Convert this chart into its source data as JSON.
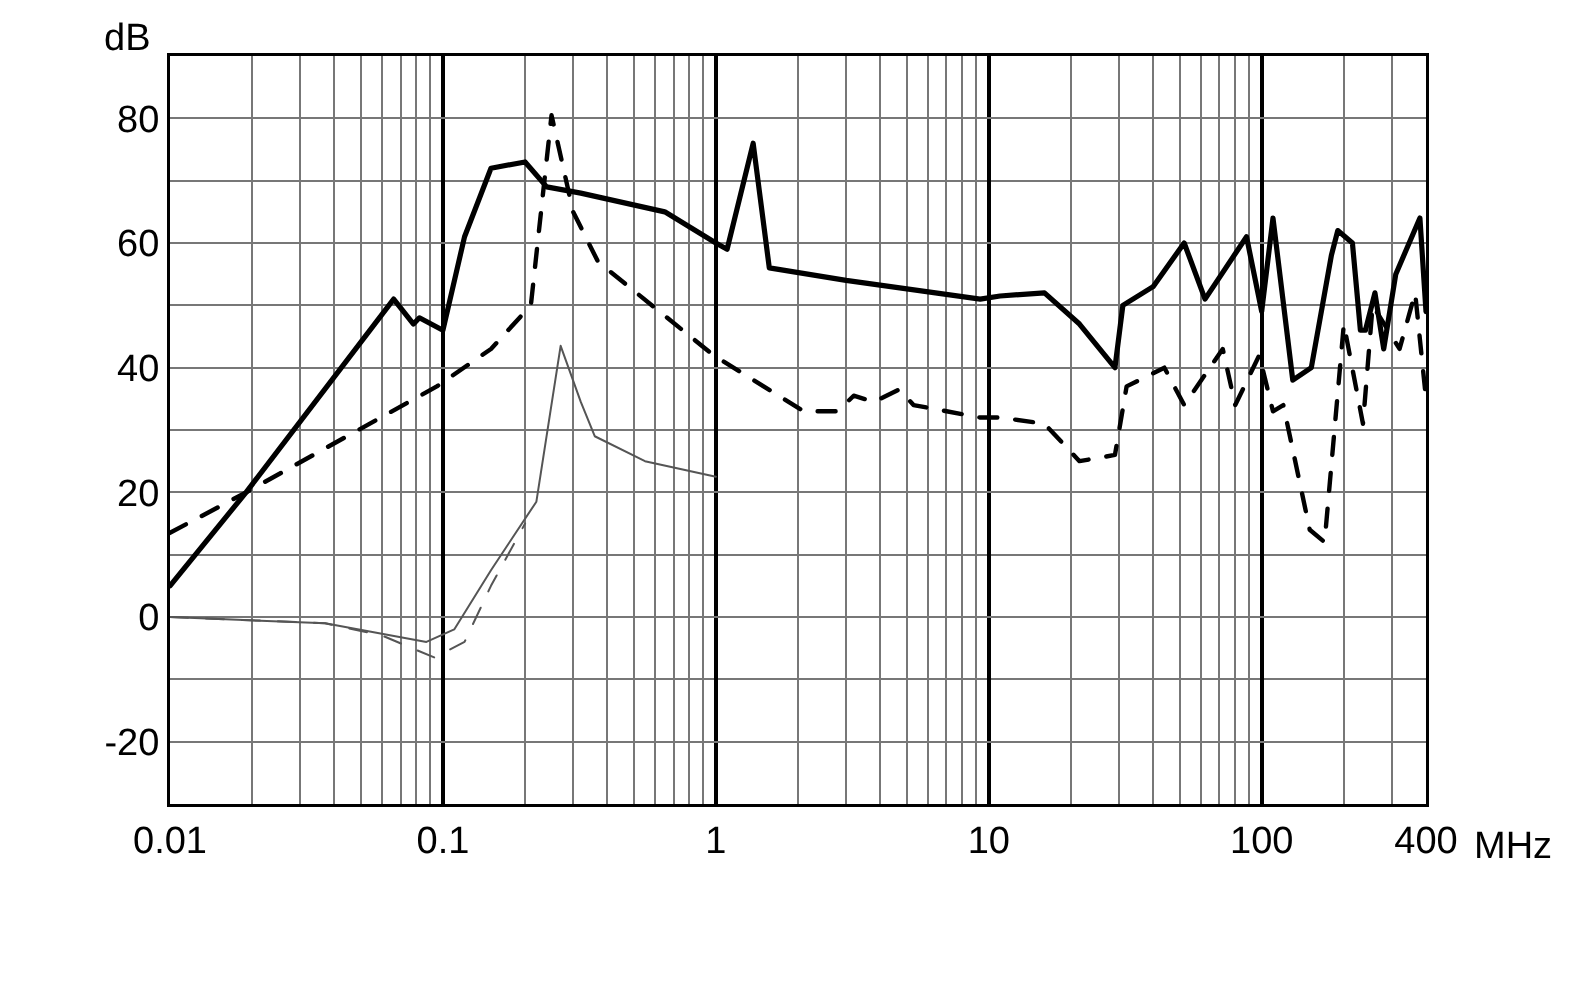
{
  "chart_data": {
    "type": "line",
    "xlabel": "MHz",
    "ylabel": "dB",
    "log": "x",
    "grid": true,
    "xlim": [
      0.01,
      400
    ],
    "xticks": [
      0.01,
      0.1,
      1,
      10,
      100,
      400
    ],
    "ylim": [
      -30,
      90
    ],
    "yticks": [
      -20,
      0,
      20,
      40,
      60,
      80
    ],
    "series": [
      {
        "color": "#000000",
        "line_style": "solid",
        "x": [
          0.01,
          0.019,
          0.066,
          0.078,
          0.082,
          0.1,
          0.12,
          0.15,
          0.2,
          0.24,
          0.32,
          0.65,
          1.0,
          1.1,
          1.37,
          1.57,
          3,
          9.3,
          11,
          16,
          21.5,
          29,
          31,
          40,
          52,
          62,
          88,
          100,
          110,
          130,
          152,
          180,
          190,
          215,
          230,
          240,
          260,
          280,
          310,
          380,
          400
        ],
        "values": [
          5,
          20,
          51,
          47,
          48,
          46,
          61,
          72,
          73,
          69,
          68,
          65,
          60,
          59,
          76,
          56,
          54,
          51,
          51.5,
          52,
          47,
          40,
          50,
          53,
          60,
          51,
          61,
          49,
          64,
          38,
          40,
          58,
          62,
          60,
          46,
          46,
          52,
          43,
          55,
          64,
          49
        ]
      },
      {
        "color": "#000000",
        "line_style": "dashed",
        "x": [
          0.01,
          0.019,
          0.095,
          0.15,
          0.21,
          0.25,
          0.3,
          0.37,
          0.98,
          2.1,
          2.8,
          3.2,
          3.8,
          4.7,
          5.3,
          9.3,
          11,
          16,
          21.5,
          29,
          32,
          44,
          52,
          72,
          80,
          98,
          110,
          120,
          150,
          170,
          200,
          235,
          255,
          320,
          365,
          400
        ],
        "values": [
          13.5,
          20,
          37,
          43,
          50,
          80.5,
          65,
          57,
          42,
          33,
          33,
          35.5,
          34.5,
          36.5,
          34,
          32,
          32,
          31,
          25,
          26,
          37,
          40,
          34,
          43,
          34,
          42,
          33,
          34,
          14,
          12,
          47,
          31,
          50,
          43,
          52,
          35
        ]
      },
      {
        "color": "#555555",
        "line_style": "solid",
        "x": [
          0.01,
          0.037,
          0.087,
          0.11,
          0.15,
          0.22,
          0.27,
          0.32,
          0.36,
          0.55,
          1.0
        ],
        "values": [
          0,
          -1,
          -4,
          -2,
          7.5,
          18.5,
          43.5,
          34.5,
          29,
          25,
          22.5
        ]
      },
      {
        "color": "#555555",
        "line_style": "dashed",
        "x": [
          0.01,
          0.037,
          0.06,
          0.093,
          0.12,
          0.15,
          0.2
        ],
        "values": [
          0,
          -1,
          -3,
          -6.5,
          -4,
          5,
          15
        ]
      }
    ]
  }
}
